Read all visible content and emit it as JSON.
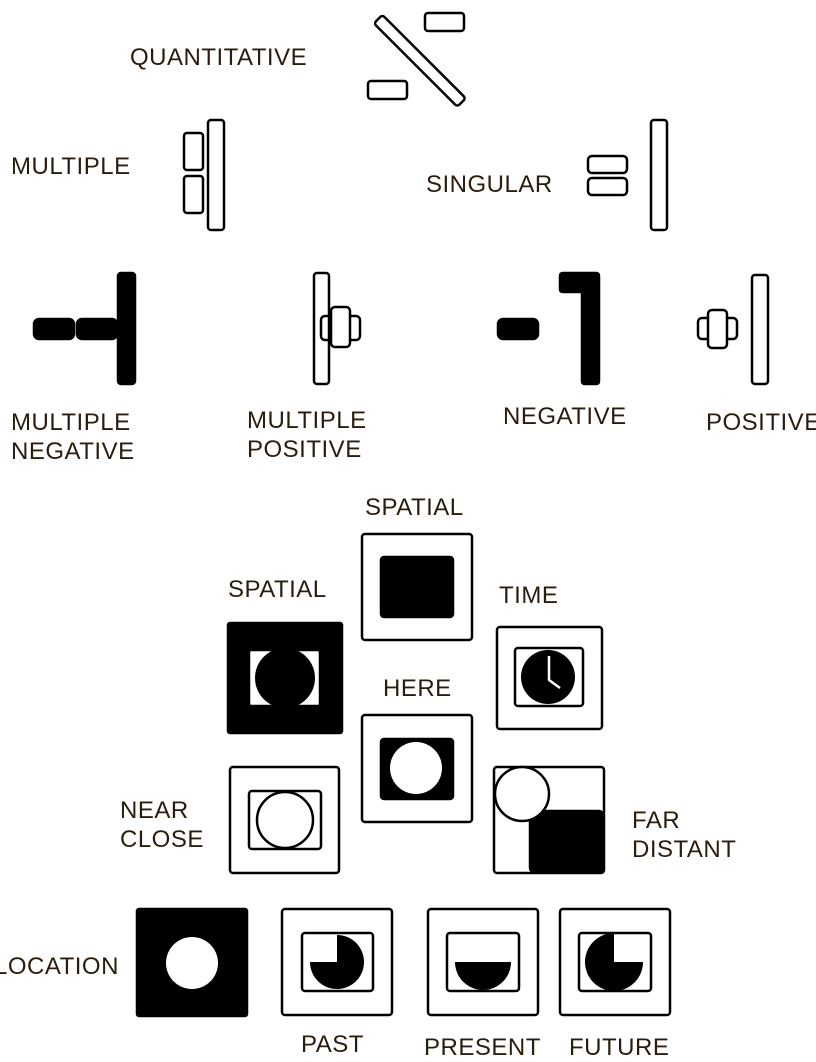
{
  "labels": {
    "quantitative": "QUANTITATIVE",
    "multiple": "MULTIPLE",
    "singular": "SINGULAR",
    "multiple_negative_line1": "MULTIPLE",
    "multiple_negative_line2": "NEGATIVE",
    "multiple_positive_line1": "MULTIPLE",
    "multiple_positive_line2": "POSITIVE",
    "negative": "NEGATIVE",
    "positive": "POSITIVE",
    "spatial_top": "SPATIAL",
    "spatial_left": "SPATIAL",
    "time": "TIME",
    "here": "HERE",
    "near_close_line1": "NEAR",
    "near_close_line2": "CLOSE",
    "far_distant_line1": "FAR",
    "far_distant_line2": "DISTANT",
    "location": "LOCATION",
    "past": "PAST",
    "present": "PRESENT",
    "future": "FUTURE"
  },
  "colors": {
    "ink": "#000000",
    "paper": "#ffffff",
    "label_text": "#2b1d0e"
  }
}
